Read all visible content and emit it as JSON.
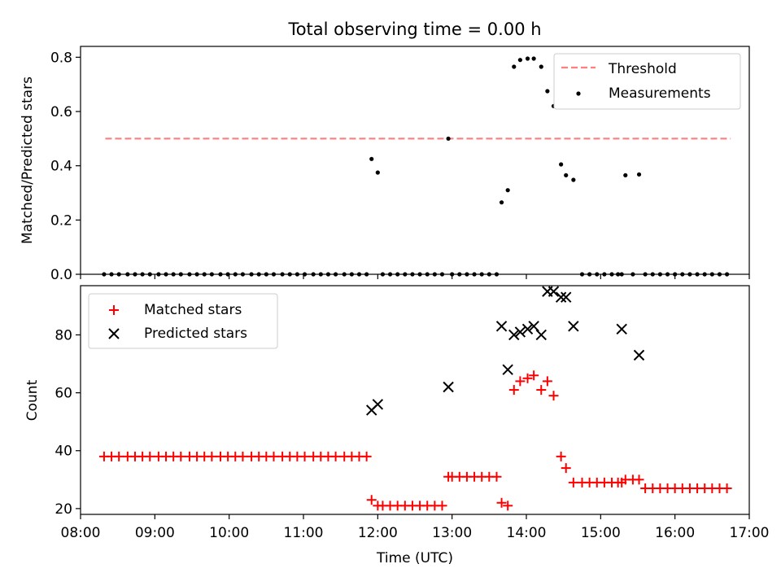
{
  "figure": {
    "title": "Total observing time = 0.00 h",
    "xlabel": "Time (UTC)"
  },
  "colors": {
    "threshold": "#ff7f7f",
    "measurements": "#000000",
    "matched": "#ff0000",
    "predicted": "#000000"
  },
  "chart_data": [
    {
      "type": "scatter",
      "panel": "top",
      "ylabel": "Matched/Predicted stars",
      "xlim": [
        "08:00",
        "17:00"
      ],
      "ylim": [
        0,
        0.84
      ],
      "xticks": [
        "08:00",
        "09:00",
        "10:00",
        "11:00",
        "12:00",
        "13:00",
        "14:00",
        "15:00",
        "16:00",
        "17:00"
      ],
      "yticks": [
        0.0,
        0.2,
        0.4,
        0.6,
        0.8
      ],
      "ytick_labels": [
        "0.0",
        "0.2",
        "0.4",
        "0.6",
        "0.8"
      ],
      "legend": {
        "placement": "top-right",
        "entries": [
          "Threshold",
          "Measurements"
        ]
      },
      "series": [
        {
          "name": "Threshold",
          "kind": "line",
          "style": "dashed",
          "x": [
            "08:20",
            "16:45"
          ],
          "y": [
            0.5,
            0.5
          ]
        },
        {
          "name": "Measurements",
          "kind": "scatter",
          "x": [
            "08:19",
            "08:25",
            "08:31",
            "08:38",
            "08:44",
            "08:50",
            "08:56",
            "09:03",
            "09:09",
            "09:15",
            "09:21",
            "09:28",
            "09:34",
            "09:40",
            "09:46",
            "09:53",
            "09:59",
            "10:05",
            "10:11",
            "10:18",
            "10:24",
            "10:30",
            "10:36",
            "10:43",
            "10:49",
            "10:55",
            "11:01",
            "11:08",
            "11:14",
            "11:20",
            "11:26",
            "11:33",
            "11:39",
            "11:45",
            "11:51",
            "11:55",
            "12:00",
            "12:04",
            "12:10",
            "12:16",
            "12:22",
            "12:28",
            "12:34",
            "12:40",
            "12:46",
            "12:52",
            "12:57",
            "13:00",
            "13:06",
            "13:12",
            "13:18",
            "13:24",
            "13:30",
            "13:36",
            "13:40",
            "13:45",
            "13:50",
            "13:55",
            "14:01",
            "14:06",
            "14:12",
            "14:17",
            "14:22",
            "14:28",
            "14:32",
            "14:38",
            "14:45",
            "14:51",
            "14:57",
            "15:03",
            "15:09",
            "15:14",
            "15:17",
            "15:20",
            "15:26",
            "15:31",
            "15:36",
            "15:42",
            "15:48",
            "15:54",
            "16:00",
            "16:06",
            "16:12",
            "16:18",
            "16:24",
            "16:30",
            "16:36",
            "16:42"
          ],
          "y": [
            0,
            0,
            0,
            0,
            0,
            0,
            0,
            0,
            0,
            0,
            0,
            0,
            0,
            0,
            0,
            0,
            0,
            0,
            0,
            0,
            0,
            0,
            0,
            0,
            0,
            0,
            0,
            0,
            0,
            0,
            0,
            0,
            0,
            0,
            0,
            0.425,
            0.375,
            0,
            0,
            0,
            0,
            0,
            0,
            0,
            0,
            0,
            0.5,
            0,
            0,
            0,
            0,
            0,
            0,
            0,
            0.265,
            0.31,
            0.765,
            0.79,
            0.795,
            0.795,
            0.765,
            0.675,
            0.62,
            0.405,
            0.365,
            0.348,
            0,
            0,
            0,
            0,
            0,
            0,
            0,
            0.365,
            0,
            0.368,
            0,
            0,
            0,
            0,
            0,
            0,
            0,
            0,
            0,
            0,
            0,
            0
          ]
        }
      ]
    },
    {
      "type": "scatter",
      "panel": "bottom",
      "ylabel": "Count",
      "xlabel": "Time (UTC)",
      "xlim": [
        "08:00",
        "17:00"
      ],
      "ylim": [
        18,
        97
      ],
      "xticks": [
        "08:00",
        "09:00",
        "10:00",
        "11:00",
        "12:00",
        "13:00",
        "14:00",
        "15:00",
        "16:00",
        "17:00"
      ],
      "yticks": [
        20,
        40,
        60,
        80
      ],
      "ytick_labels": [
        "20",
        "40",
        "60",
        "80"
      ],
      "legend": {
        "placement": "top-left",
        "entries": [
          "Matched stars",
          "Predicted stars"
        ]
      },
      "series": [
        {
          "name": "Matched stars",
          "marker": "+",
          "x": [
            "08:19",
            "08:25",
            "08:31",
            "08:38",
            "08:44",
            "08:50",
            "08:56",
            "09:03",
            "09:09",
            "09:15",
            "09:21",
            "09:28",
            "09:34",
            "09:40",
            "09:46",
            "09:53",
            "09:59",
            "10:05",
            "10:11",
            "10:18",
            "10:24",
            "10:30",
            "10:36",
            "10:43",
            "10:49",
            "10:55",
            "11:01",
            "11:08",
            "11:14",
            "11:20",
            "11:26",
            "11:33",
            "11:39",
            "11:45",
            "11:51",
            "11:55",
            "12:00",
            "12:04",
            "12:10",
            "12:16",
            "12:22",
            "12:28",
            "12:34",
            "12:40",
            "12:46",
            "12:52",
            "12:57",
            "13:00",
            "13:06",
            "13:12",
            "13:18",
            "13:24",
            "13:30",
            "13:36",
            "13:40",
            "13:45",
            "13:50",
            "13:55",
            "14:01",
            "14:06",
            "14:12",
            "14:17",
            "14:22",
            "14:28",
            "14:32",
            "14:38",
            "14:45",
            "14:51",
            "14:57",
            "15:03",
            "15:09",
            "15:14",
            "15:17",
            "15:20",
            "15:26",
            "15:31",
            "15:36",
            "15:42",
            "15:48",
            "15:54",
            "16:00",
            "16:06",
            "16:12",
            "16:18",
            "16:24",
            "16:30",
            "16:36",
            "16:42"
          ],
          "y": [
            38,
            38,
            38,
            38,
            38,
            38,
            38,
            38,
            38,
            38,
            38,
            38,
            38,
            38,
            38,
            38,
            38,
            38,
            38,
            38,
            38,
            38,
            38,
            38,
            38,
            38,
            38,
            38,
            38,
            38,
            38,
            38,
            38,
            38,
            38,
            23,
            21,
            21,
            21,
            21,
            21,
            21,
            21,
            21,
            21,
            21,
            31,
            31,
            31,
            31,
            31,
            31,
            31,
            31,
            22,
            21,
            61,
            64,
            65,
            66,
            61,
            64,
            59,
            38,
            34,
            29,
            29,
            29,
            29,
            29,
            29,
            29,
            29,
            30,
            30,
            30,
            27,
            27,
            27,
            27,
            27,
            27,
            27,
            27,
            27,
            27,
            27,
            27
          ]
        },
        {
          "name": "Predicted stars",
          "marker": "x",
          "x": [
            "11:55",
            "12:00",
            "12:57",
            "13:40",
            "13:45",
            "13:50",
            "13:55",
            "14:01",
            "14:06",
            "14:12",
            "14:17",
            "14:22",
            "14:28",
            "14:32",
            "14:38",
            "15:17",
            "15:31"
          ],
          "y": [
            54,
            56,
            62,
            83,
            68,
            80,
            81,
            82,
            83,
            80,
            95,
            95,
            93,
            93,
            83,
            82,
            73
          ]
        }
      ]
    }
  ]
}
